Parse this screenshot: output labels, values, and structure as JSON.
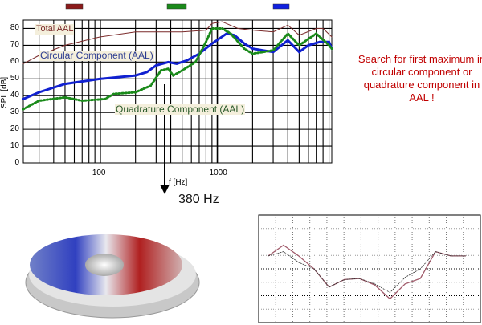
{
  "chart_data": [
    {
      "type": "line",
      "title": "",
      "xlabel": "f [Hz]",
      "ylabel": "SPL [dB]",
      "xscale": "log",
      "xlim": [
        22,
        9500
      ],
      "ylim": [
        0,
        85
      ],
      "xticks": [
        "100",
        "1000"
      ],
      "yticks": [
        "0",
        "10",
        "20",
        "30",
        "40",
        "50",
        "60",
        "70",
        "80"
      ],
      "grid": true,
      "series": [
        {
          "name": "Total AAL",
          "color": "#7a2a2a",
          "style": "thin solid",
          "x": [
            22,
            30,
            50,
            100,
            200,
            500,
            800,
            900,
            1100,
            1500,
            2000,
            3000,
            4000,
            5000,
            7000,
            8000,
            9500
          ],
          "y": [
            59,
            64,
            70,
            75,
            78,
            78,
            79,
            83,
            84,
            80,
            79,
            78,
            82,
            76,
            80,
            80,
            75
          ]
        },
        {
          "name": "Circular Component (AAL)",
          "color": "#1020d0",
          "style": "thick solid",
          "x": [
            22,
            30,
            50,
            100,
            200,
            250,
            300,
            380,
            450,
            550,
            700,
            900,
            1200,
            1400,
            1700,
            2000,
            3000,
            4000,
            5000,
            6000,
            7500,
            9000,
            9500
          ],
          "y": [
            38,
            42,
            47,
            50,
            52,
            54,
            58,
            60,
            59,
            61,
            65,
            71,
            77,
            76,
            71,
            68,
            66,
            73,
            66,
            70,
            72,
            72,
            68
          ]
        },
        {
          "name": "Quadrature Component (AAL)",
          "color": "#1a8a1a",
          "style": "dotted",
          "x": [
            22,
            30,
            50,
            70,
            110,
            130,
            200,
            270,
            330,
            380,
            420,
            500,
            650,
            800,
            900,
            1100,
            1300,
            1700,
            2000,
            3000,
            4000,
            5000,
            7000,
            9000,
            9500
          ],
          "y": [
            32,
            37,
            39,
            37,
            38,
            41,
            42,
            46,
            55,
            56,
            52,
            55,
            60,
            72,
            80,
            80,
            77,
            68,
            65,
            67,
            77,
            70,
            77,
            70,
            68
          ]
        }
      ],
      "legend_swatches": [
        "#8b1a1a",
        "#1a8a1a",
        "#1020e0"
      ],
      "annotation": {
        "text": "380 Hz",
        "at_x": 380
      }
    },
    {
      "type": "line",
      "title": "",
      "grid": true,
      "series": [
        {
          "color": "#a05a6a",
          "style": "solid",
          "x": [
            0,
            1,
            2,
            3,
            4,
            5,
            6,
            7,
            8,
            9,
            10,
            11,
            12,
            13
          ],
          "y": [
            0.62,
            0.72,
            0.62,
            0.5,
            0.33,
            0.4,
            0.41,
            0.35,
            0.22,
            0.36,
            0.41,
            0.66,
            0.62,
            0.62
          ]
        },
        {
          "color": "#333333",
          "style": "dashed",
          "x": [
            0,
            1,
            2,
            3,
            4,
            5,
            6,
            7,
            8,
            9,
            10,
            11,
            12,
            13
          ],
          "y": [
            0.62,
            0.66,
            0.56,
            0.5,
            0.33,
            0.4,
            0.41,
            0.36,
            0.28,
            0.42,
            0.5,
            0.66,
            0.62,
            0.62
          ]
        }
      ]
    }
  ],
  "annotation": {
    "freq_label": "380 Hz",
    "note": "Search for first maximum in circular component or quadrature component in AAL !",
    "note_color": "#c00000"
  }
}
